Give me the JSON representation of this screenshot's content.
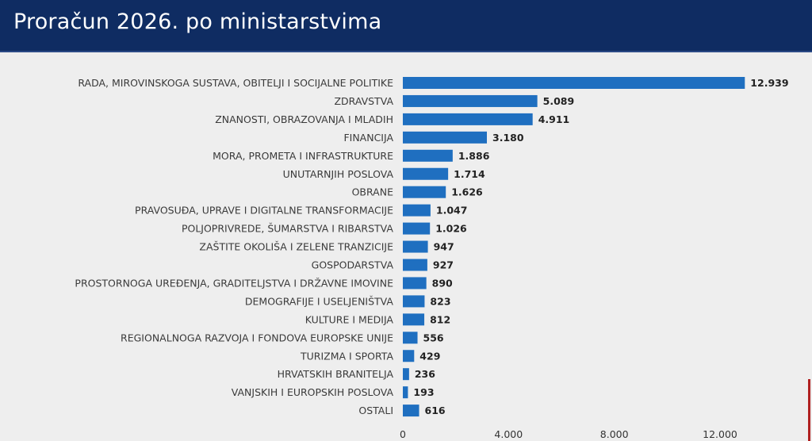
{
  "header": {
    "title": "Proračun 2026. po ministarstvima"
  },
  "colors": {
    "header_bg": "#0f2c62",
    "bar": "#1f6fc0",
    "background": "#eeeeee"
  },
  "chart_data": {
    "type": "bar",
    "orientation": "horizontal",
    "title": "Proračun 2026. po ministarstvima",
    "categories": [
      "RADA, MIROVINSKOGA SUSTAVA, OBITELJI I SOCIJALNE POLITIKE",
      "ZDRAVSTVA",
      "ZNANOSTI, OBRAZOVANJA I MLADIH",
      "FINANCIJA",
      "MORA, PROMETA I INFRASTRUKTURE",
      "UNUTARNJIH POSLOVA",
      "OBRANE",
      "PRAVOSUĐA, UPRAVE I DIGITALNE TRANSFORMACIJE",
      "POLJOPRIVREDE, ŠUMARSTVA I RIBARSTVA",
      "ZAŠTITE OKOLIŠA I ZELENE TRANZICIJE",
      "GOSPODARSTVA",
      "PROSTORNOGA UREĐENJA, GRADITELJSTVA I DRŽAVNE IMOVINE",
      "DEMOGRAFIJE I USELJENIŠTVA",
      "KULTURE I MEDIJA",
      "REGIONALNOGA RAZVOJA I FONDOVA EUROPSKE UNIJE",
      "TURIZMA I SPORTA",
      "HRVATSKIH BRANITELJA",
      "VANJSKIH I EUROPSKIH POSLOVA",
      "OSTALI"
    ],
    "values": [
      12939,
      5089,
      4911,
      3180,
      1886,
      1714,
      1626,
      1047,
      1026,
      947,
      927,
      890,
      823,
      812,
      556,
      429,
      236,
      193,
      616
    ],
    "value_labels": [
      "12.939",
      "5.089",
      "4.911",
      "3.180",
      "1.886",
      "1.714",
      "1.626",
      "1.047",
      "1.026",
      "947",
      "927",
      "890",
      "823",
      "812",
      "556",
      "429",
      "236",
      "193",
      "616"
    ],
    "xticks": [
      0,
      4000,
      8000,
      12000
    ],
    "xtick_labels": [
      "0",
      "4.000",
      "8.000",
      "12.000"
    ],
    "xlim": [
      0,
      14000
    ],
    "grid": false,
    "legend": "none"
  }
}
